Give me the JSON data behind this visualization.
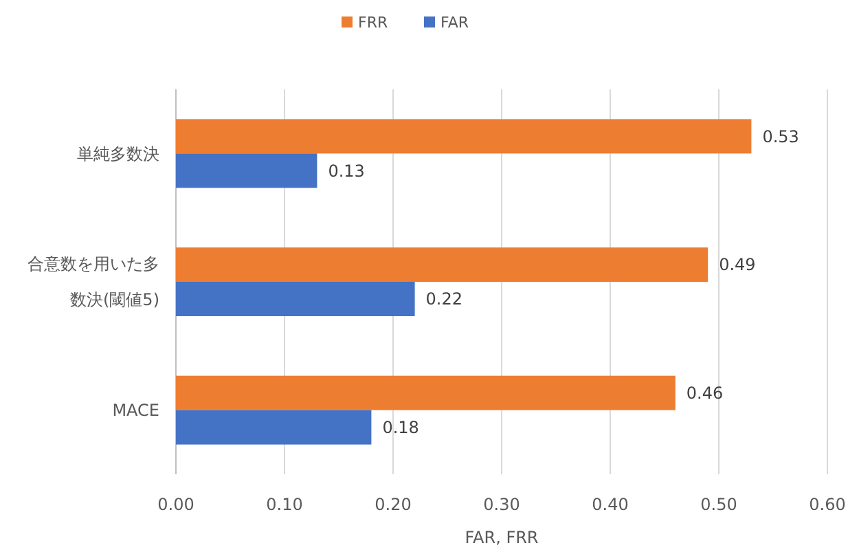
{
  "chart_data": {
    "type": "bar",
    "orientation": "horizontal",
    "categories": [
      "単純多数決",
      "合意数を用いた多数決(閾値5)",
      "MACE"
    ],
    "series": [
      {
        "name": "FRR",
        "color": "#ed7d31",
        "values": [
          0.53,
          0.49,
          0.46
        ]
      },
      {
        "name": "FAR",
        "color": "#4472c4",
        "values": [
          0.13,
          0.22,
          0.18
        ]
      }
    ],
    "xlabel": "FAR, FRR",
    "xlim": [
      0,
      0.6
    ],
    "xticks": [
      {
        "value": 0,
        "label": "0.00"
      },
      {
        "value": 0.1,
        "label": "0.10"
      },
      {
        "value": 0.2,
        "label": "0.20"
      },
      {
        "value": 0.3,
        "label": "0.30"
      },
      {
        "value": 0.4,
        "label": "0.40"
      },
      {
        "value": 0.5,
        "label": "0.50"
      },
      {
        "value": 0.6,
        "label": "0.60"
      }
    ],
    "grid": "x",
    "legend": "top",
    "data_labels": true
  }
}
